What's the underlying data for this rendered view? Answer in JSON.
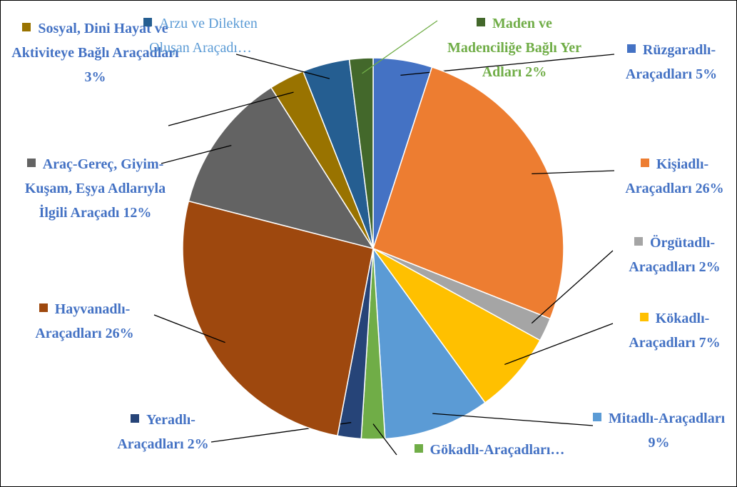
{
  "chart_data": {
    "type": "pie",
    "categories": [
      "Rüzgaradlı-Araçadları",
      "Kişiadlı-Araçadları",
      "Örgütadlı-Araçadları",
      "Kökadlı-Araçadları",
      "Mitadlı-Araçadları",
      "Gökadlı-Araçadları…",
      "Yeradlı-Araçadları",
      "Hayvanadlı-Araçadları",
      "Araç-Gereç, Giyim-Kuşam, Eşya Adlarıyla İlgili Araçadı",
      "Sosyal, Dini Hayat ve Aktiviteye Bağlı Araçadları",
      "Arzu ve Dilekten Oluşan Araçadı…",
      "Maden ve Madenciliğe Bağlı Yer Adları"
    ],
    "values": [
      5,
      26,
      2,
      7,
      9,
      2,
      2,
      26,
      12,
      3,
      4,
      2
    ],
    "value_labels": [
      "5%",
      "26%",
      "2%",
      "7%",
      "9%",
      null,
      "2%",
      "26%",
      "12%",
      "3%",
      null,
      "2%"
    ],
    "colors": [
      "#4472c4",
      "#ed7d31",
      "#a5a5a5",
      "#ffc000",
      "#5b9bd5",
      "#70ad47",
      "#264478",
      "#9e480e",
      "#636363",
      "#997300",
      "#255e91",
      "#43682b"
    ]
  }
}
